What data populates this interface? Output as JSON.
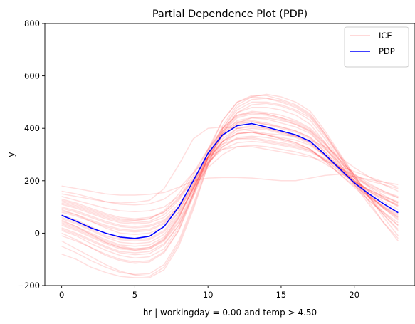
{
  "chart_data": {
    "type": "line",
    "title": "Partial Dependence Plot (PDP)",
    "xlabel": "hr | workingday = 0.00 and temp > 4.50",
    "ylabel": "y",
    "xlim": [
      -1.15,
      24.15
    ],
    "ylim": [
      -200,
      800
    ],
    "xticks": [
      0,
      5,
      10,
      15,
      20
    ],
    "yticks": [
      -200,
      0,
      200,
      400,
      600,
      800
    ],
    "x": [
      0,
      1,
      2,
      3,
      4,
      5,
      6,
      7,
      8,
      9,
      10,
      11,
      12,
      13,
      14,
      15,
      16,
      17,
      18,
      19,
      20,
      21,
      22,
      23
    ],
    "legend_position": "top-right",
    "colors": {
      "ice": "#ff0000",
      "pdp": "#0000ff"
    },
    "series": [
      {
        "name": "PDP",
        "role": "pdp",
        "values": [
          68,
          45,
          20,
          0,
          -15,
          -20,
          -12,
          25,
          100,
          200,
          305,
          375,
          410,
          418,
          405,
          390,
          375,
          350,
          300,
          245,
          192,
          150,
          112,
          78
        ]
      },
      {
        "name": "ICE",
        "role": "ice",
        "values": [
          120,
          105,
          85,
          65,
          50,
          48,
          55,
          85,
          150,
          230,
          320,
          400,
          450,
          465,
          460,
          450,
          430,
          400,
          345,
          280,
          220,
          175,
          135,
          100
        ]
      },
      {
        "role": "ice",
        "values": [
          40,
          20,
          -5,
          -30,
          -50,
          -60,
          -55,
          -20,
          60,
          170,
          290,
          370,
          415,
          425,
          415,
          405,
          390,
          365,
          310,
          250,
          190,
          140,
          100,
          60
        ]
      },
      {
        "role": "ice",
        "values": [
          180,
          170,
          160,
          150,
          145,
          145,
          148,
          155,
          175,
          200,
          210,
          212,
          212,
          210,
          205,
          200,
          200,
          210,
          220,
          225,
          215,
          205,
          195,
          185
        ]
      },
      {
        "role": "ice",
        "values": [
          -30,
          -60,
          -90,
          -120,
          -145,
          -160,
          -165,
          -130,
          -40,
          100,
          260,
          380,
          460,
          490,
          495,
          485,
          465,
          430,
          360,
          280,
          200,
          120,
          40,
          -30
        ]
      },
      {
        "role": "ice",
        "values": [
          90,
          70,
          45,
          20,
          0,
          -5,
          0,
          25,
          80,
          160,
          260,
          350,
          400,
          410,
          400,
          385,
          370,
          345,
          300,
          250,
          200,
          160,
          130,
          110
        ]
      },
      {
        "role": "ice",
        "values": [
          150,
          140,
          130,
          120,
          115,
          118,
          125,
          170,
          260,
          360,
          400,
          405,
          400,
          390,
          380,
          375,
          370,
          355,
          330,
          290,
          250,
          215,
          185,
          160
        ]
      },
      {
        "role": "ice",
        "values": [
          10,
          -10,
          -40,
          -65,
          -85,
          -95,
          -90,
          -60,
          20,
          150,
          290,
          400,
          470,
          500,
          500,
          490,
          470,
          440,
          370,
          290,
          210,
          140,
          80,
          30
        ]
      },
      {
        "role": "ice",
        "values": [
          60,
          40,
          15,
          -10,
          -25,
          -30,
          -25,
          5,
          70,
          170,
          280,
          350,
          380,
          385,
          375,
          360,
          345,
          320,
          275,
          225,
          180,
          140,
          105,
          75
        ]
      },
      {
        "role": "ice",
        "values": [
          100,
          85,
          65,
          45,
          30,
          25,
          30,
          50,
          100,
          180,
          270,
          330,
          360,
          365,
          355,
          345,
          335,
          315,
          280,
          240,
          200,
          165,
          140,
          120
        ]
      },
      {
        "role": "ice",
        "values": [
          -80,
          -100,
          -130,
          -150,
          -165,
          -170,
          -170,
          -140,
          -50,
          90,
          260,
          400,
          480,
          510,
          515,
          505,
          485,
          450,
          380,
          300,
          220,
          140,
          60,
          -10
        ]
      },
      {
        "role": "ice",
        "values": [
          30,
          10,
          -15,
          -40,
          -60,
          -65,
          -60,
          -30,
          40,
          150,
          270,
          360,
          400,
          405,
          400,
          385,
          370,
          345,
          295,
          240,
          185,
          135,
          95,
          60
        ]
      },
      {
        "role": "ice",
        "values": [
          140,
          125,
          110,
          95,
          85,
          82,
          85,
          100,
          140,
          200,
          270,
          320,
          345,
          350,
          345,
          335,
          325,
          310,
          280,
          250,
          220,
          200,
          185,
          170
        ]
      },
      {
        "role": "ice",
        "values": [
          50,
          25,
          -5,
          -35,
          -55,
          -65,
          -60,
          -25,
          55,
          180,
          320,
          430,
          500,
          520,
          515,
          500,
          480,
          445,
          375,
          295,
          215,
          150,
          95,
          50
        ]
      },
      {
        "role": "ice",
        "values": [
          80,
          65,
          45,
          25,
          10,
          5,
          10,
          35,
          90,
          170,
          250,
          300,
          330,
          335,
          330,
          320,
          310,
          295,
          265,
          230,
          195,
          165,
          140,
          115
        ]
      },
      {
        "role": "ice",
        "values": [
          -10,
          -30,
          -55,
          -80,
          -100,
          -110,
          -105,
          -70,
          10,
          140,
          290,
          410,
          490,
          520,
          530,
          520,
          500,
          465,
          390,
          305,
          220,
          140,
          70,
          10
        ]
      },
      {
        "role": "ice",
        "values": [
          110,
          95,
          75,
          55,
          40,
          35,
          40,
          60,
          110,
          190,
          290,
          370,
          420,
          440,
          440,
          430,
          415,
          390,
          340,
          280,
          225,
          180,
          145,
          115
        ]
      },
      {
        "role": "ice",
        "values": [
          20,
          0,
          -25,
          -50,
          -70,
          -75,
          -70,
          -40,
          30,
          140,
          260,
          340,
          380,
          385,
          375,
          360,
          345,
          320,
          275,
          225,
          175,
          125,
          80,
          40
        ]
      },
      {
        "role": "ice",
        "values": [
          70,
          50,
          25,
          0,
          -20,
          -25,
          -20,
          10,
          80,
          190,
          310,
          400,
          450,
          460,
          455,
          440,
          425,
          395,
          340,
          275,
          210,
          160,
          120,
          90
        ]
      },
      {
        "role": "ice",
        "values": [
          130,
          115,
          95,
          75,
          60,
          55,
          60,
          80,
          130,
          210,
          290,
          340,
          360,
          360,
          350,
          340,
          330,
          315,
          285,
          250,
          215,
          185,
          160,
          140
        ]
      },
      {
        "role": "ice",
        "values": [
          0,
          -25,
          -55,
          -85,
          -105,
          -115,
          -110,
          -75,
          10,
          150,
          310,
          430,
          500,
          525,
          525,
          510,
          490,
          455,
          380,
          295,
          210,
          135,
          70,
          15
        ]
      },
      {
        "role": "ice",
        "values": [
          95,
          80,
          60,
          40,
          25,
          20,
          25,
          45,
          100,
          185,
          280,
          350,
          390,
          400,
          395,
          380,
          365,
          340,
          295,
          245,
          200,
          165,
          135,
          105
        ]
      },
      {
        "role": "ice",
        "values": [
          45,
          25,
          0,
          -25,
          -45,
          -50,
          -45,
          -15,
          60,
          170,
          290,
          380,
          430,
          440,
          435,
          420,
          405,
          380,
          325,
          260,
          195,
          145,
          100,
          65
        ]
      },
      {
        "role": "ice",
        "values": [
          160,
          150,
          135,
          120,
          110,
          108,
          112,
          130,
          170,
          230,
          290,
          320,
          330,
          330,
          320,
          310,
          300,
          290,
          275,
          255,
          235,
          215,
          195,
          175
        ]
      },
      {
        "role": "ice",
        "values": [
          -50,
          -75,
          -105,
          -130,
          -150,
          -158,
          -155,
          -120,
          -30,
          110,
          270,
          390,
          460,
          480,
          480,
          470,
          450,
          415,
          345,
          265,
          185,
          110,
          40,
          -20
        ]
      },
      {
        "role": "ice",
        "values": [
          115,
          100,
          80,
          60,
          45,
          40,
          45,
          70,
          125,
          205,
          290,
          350,
          380,
          385,
          375,
          365,
          355,
          335,
          295,
          250,
          210,
          180,
          155,
          135
        ]
      },
      {
        "role": "ice",
        "values": [
          35,
          15,
          -10,
          -35,
          -55,
          -60,
          -55,
          -25,
          45,
          160,
          290,
          390,
          445,
          460,
          455,
          440,
          420,
          390,
          330,
          265,
          200,
          145,
          95,
          55
        ]
      },
      {
        "role": "ice",
        "values": [
          85,
          70,
          50,
          30,
          15,
          10,
          15,
          40,
          95,
          175,
          265,
          330,
          365,
          370,
          365,
          355,
          340,
          320,
          280,
          235,
          195,
          160,
          130,
          105
        ]
      },
      {
        "role": "ice",
        "values": [
          15,
          -5,
          -30,
          -55,
          -75,
          -82,
          -78,
          -45,
          30,
          150,
          285,
          385,
          440,
          455,
          450,
          435,
          415,
          385,
          325,
          255,
          185,
          125,
          75,
          30
        ]
      },
      {
        "role": "ice",
        "values": [
          125,
          110,
          90,
          70,
          55,
          50,
          55,
          80,
          135,
          220,
          320,
          390,
          425,
          430,
          420,
          405,
          390,
          365,
          320,
          270,
          225,
          190,
          160,
          135
        ]
      },
      {
        "role": "ice",
        "values": [
          55,
          35,
          10,
          -15,
          -35,
          -40,
          -35,
          -5,
          65,
          175,
          300,
          380,
          420,
          425,
          415,
          400,
          385,
          360,
          310,
          250,
          190,
          140,
          100,
          70
        ]
      }
    ]
  }
}
